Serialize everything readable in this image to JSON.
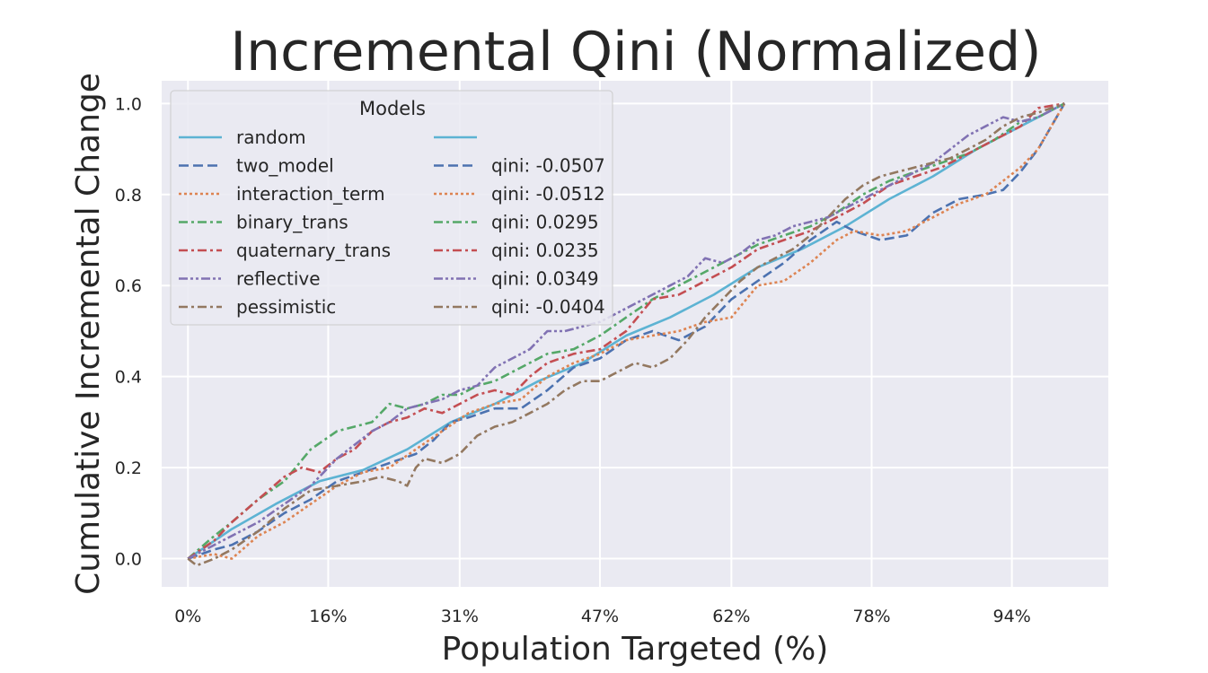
{
  "chart_data": {
    "type": "line",
    "title": "Incremental Qini (Normalized)",
    "xlabel": "Population Targeted (%)",
    "ylabel": "Cumulative Incremental Change",
    "xlim": [
      -3.0,
      105.0
    ],
    "ylim": [
      -0.062,
      1.05
    ],
    "x_ticks": [
      0,
      16,
      31,
      47,
      62,
      78,
      94
    ],
    "x_tick_labels": [
      "0%",
      "16%",
      "31%",
      "47%",
      "62%",
      "78%",
      "94%"
    ],
    "y_ticks": [
      0.0,
      0.2,
      0.4,
      0.6,
      0.8,
      1.0
    ],
    "y_tick_labels": [
      "0.0",
      "0.2",
      "0.4",
      "0.6",
      "0.8",
      "1.0"
    ],
    "grid": true,
    "legend": {
      "title": "Models",
      "placement": "top-left",
      "qini_labels": [
        "",
        "qini: -0.0507",
        "qini: -0.0512",
        "qini: 0.0295",
        "qini: 0.0235",
        "qini: 0.0349",
        "qini: -0.0404"
      ]
    },
    "series": [
      {
        "name": "random",
        "color": "#5DB3D3",
        "dash": "solid",
        "points": [
          [
            0,
            0
          ],
          [
            5,
            0.065
          ],
          [
            10,
            0.12
          ],
          [
            15,
            0.17
          ],
          [
            20,
            0.195
          ],
          [
            25,
            0.24
          ],
          [
            30,
            0.3
          ],
          [
            35,
            0.34
          ],
          [
            40,
            0.39
          ],
          [
            45,
            0.43
          ],
          [
            50,
            0.49
          ],
          [
            55,
            0.53
          ],
          [
            60,
            0.58
          ],
          [
            65,
            0.64
          ],
          [
            70,
            0.68
          ],
          [
            75,
            0.73
          ],
          [
            80,
            0.79
          ],
          [
            85,
            0.84
          ],
          [
            90,
            0.9
          ],
          [
            95,
            0.95
          ],
          [
            100,
            1.0
          ]
        ]
      },
      {
        "name": "two_model",
        "color": "#4C72B0",
        "dash": "dashed",
        "points": [
          [
            0,
            0
          ],
          [
            3,
            0.02
          ],
          [
            5,
            0.03
          ],
          [
            8,
            0.06
          ],
          [
            11,
            0.1
          ],
          [
            14,
            0.13
          ],
          [
            17,
            0.17
          ],
          [
            20,
            0.19
          ],
          [
            23,
            0.21
          ],
          [
            26,
            0.23
          ],
          [
            28,
            0.26
          ],
          [
            30,
            0.3
          ],
          [
            32,
            0.31
          ],
          [
            35,
            0.33
          ],
          [
            38,
            0.33
          ],
          [
            41,
            0.37
          ],
          [
            44,
            0.42
          ],
          [
            47,
            0.44
          ],
          [
            50,
            0.48
          ],
          [
            53,
            0.5
          ],
          [
            56,
            0.48
          ],
          [
            59,
            0.51
          ],
          [
            62,
            0.57
          ],
          [
            65,
            0.61
          ],
          [
            68,
            0.65
          ],
          [
            71,
            0.7
          ],
          [
            74,
            0.74
          ],
          [
            76,
            0.72
          ],
          [
            79,
            0.7
          ],
          [
            82,
            0.71
          ],
          [
            85,
            0.76
          ],
          [
            88,
            0.79
          ],
          [
            91,
            0.8
          ],
          [
            93,
            0.81
          ],
          [
            95,
            0.85
          ],
          [
            97,
            0.9
          ],
          [
            100,
            1.0
          ]
        ]
      },
      {
        "name": "interaction_term",
        "color": "#DD8452",
        "dash": "dotted",
        "points": [
          [
            0,
            0
          ],
          [
            3,
            0.01
          ],
          [
            5,
            0.0
          ],
          [
            8,
            0.05
          ],
          [
            11,
            0.08
          ],
          [
            14,
            0.12
          ],
          [
            17,
            0.16
          ],
          [
            20,
            0.19
          ],
          [
            23,
            0.2
          ],
          [
            26,
            0.24
          ],
          [
            29,
            0.28
          ],
          [
            32,
            0.32
          ],
          [
            35,
            0.34
          ],
          [
            38,
            0.35
          ],
          [
            41,
            0.4
          ],
          [
            44,
            0.43
          ],
          [
            47,
            0.45
          ],
          [
            50,
            0.48
          ],
          [
            53,
            0.49
          ],
          [
            56,
            0.5
          ],
          [
            59,
            0.52
          ],
          [
            62,
            0.53
          ],
          [
            65,
            0.6
          ],
          [
            68,
            0.61
          ],
          [
            71,
            0.65
          ],
          [
            74,
            0.7
          ],
          [
            76,
            0.72
          ],
          [
            79,
            0.71
          ],
          [
            82,
            0.72
          ],
          [
            85,
            0.75
          ],
          [
            88,
            0.78
          ],
          [
            91,
            0.8
          ],
          [
            93,
            0.83
          ],
          [
            95,
            0.86
          ],
          [
            97,
            0.9
          ],
          [
            100,
            1.0
          ]
        ]
      },
      {
        "name": "binary_trans",
        "color": "#55A868",
        "dash": "dashdot",
        "points": [
          [
            0,
            0
          ],
          [
            3,
            0.05
          ],
          [
            5,
            0.08
          ],
          [
            8,
            0.13
          ],
          [
            11,
            0.17
          ],
          [
            14,
            0.24
          ],
          [
            17,
            0.28
          ],
          [
            19,
            0.29
          ],
          [
            21,
            0.3
          ],
          [
            23,
            0.34
          ],
          [
            25,
            0.33
          ],
          [
            27,
            0.34
          ],
          [
            29,
            0.36
          ],
          [
            31,
            0.36
          ],
          [
            33,
            0.38
          ],
          [
            35,
            0.39
          ],
          [
            38,
            0.42
          ],
          [
            41,
            0.45
          ],
          [
            44,
            0.46
          ],
          [
            47,
            0.49
          ],
          [
            50,
            0.53
          ],
          [
            53,
            0.57
          ],
          [
            56,
            0.6
          ],
          [
            59,
            0.63
          ],
          [
            62,
            0.66
          ],
          [
            65,
            0.69
          ],
          [
            68,
            0.71
          ],
          [
            71,
            0.73
          ],
          [
            74,
            0.76
          ],
          [
            77,
            0.8
          ],
          [
            80,
            0.83
          ],
          [
            83,
            0.85
          ],
          [
            86,
            0.87
          ],
          [
            89,
            0.89
          ],
          [
            92,
            0.92
          ],
          [
            95,
            0.96
          ],
          [
            97,
            0.97
          ],
          [
            100,
            1.0
          ]
        ]
      },
      {
        "name": "quaternary_trans",
        "color": "#C44E52",
        "dash": "dashdot",
        "points": [
          [
            0,
            0
          ],
          [
            3,
            0.04
          ],
          [
            5,
            0.08
          ],
          [
            8,
            0.13
          ],
          [
            11,
            0.18
          ],
          [
            13,
            0.2
          ],
          [
            15,
            0.19
          ],
          [
            17,
            0.22
          ],
          [
            19,
            0.24
          ],
          [
            21,
            0.28
          ],
          [
            23,
            0.3
          ],
          [
            25,
            0.31
          ],
          [
            27,
            0.33
          ],
          [
            29,
            0.32
          ],
          [
            31,
            0.34
          ],
          [
            33,
            0.36
          ],
          [
            35,
            0.37
          ],
          [
            37,
            0.36
          ],
          [
            39,
            0.4
          ],
          [
            41,
            0.43
          ],
          [
            44,
            0.45
          ],
          [
            47,
            0.46
          ],
          [
            50,
            0.5
          ],
          [
            53,
            0.57
          ],
          [
            56,
            0.58
          ],
          [
            59,
            0.61
          ],
          [
            62,
            0.64
          ],
          [
            65,
            0.68
          ],
          [
            68,
            0.7
          ],
          [
            71,
            0.72
          ],
          [
            74,
            0.75
          ],
          [
            77,
            0.78
          ],
          [
            80,
            0.82
          ],
          [
            83,
            0.84
          ],
          [
            86,
            0.86
          ],
          [
            89,
            0.89
          ],
          [
            92,
            0.92
          ],
          [
            95,
            0.95
          ],
          [
            97,
            0.99
          ],
          [
            100,
            1.0
          ]
        ]
      },
      {
        "name": "reflective",
        "color": "#8172B3",
        "dash": "dashdotdot",
        "points": [
          [
            0,
            0
          ],
          [
            3,
            0.03
          ],
          [
            5,
            0.05
          ],
          [
            8,
            0.08
          ],
          [
            11,
            0.12
          ],
          [
            14,
            0.16
          ],
          [
            17,
            0.22
          ],
          [
            19,
            0.25
          ],
          [
            21,
            0.28
          ],
          [
            23,
            0.3
          ],
          [
            25,
            0.33
          ],
          [
            27,
            0.34
          ],
          [
            29,
            0.35
          ],
          [
            31,
            0.37
          ],
          [
            33,
            0.38
          ],
          [
            35,
            0.42
          ],
          [
            37,
            0.44
          ],
          [
            39,
            0.46
          ],
          [
            41,
            0.5
          ],
          [
            43,
            0.5
          ],
          [
            45,
            0.51
          ],
          [
            47,
            0.52
          ],
          [
            49,
            0.54
          ],
          [
            51,
            0.56
          ],
          [
            53,
            0.58
          ],
          [
            55,
            0.6
          ],
          [
            57,
            0.62
          ],
          [
            59,
            0.66
          ],
          [
            61,
            0.65
          ],
          [
            63,
            0.67
          ],
          [
            65,
            0.7
          ],
          [
            67,
            0.71
          ],
          [
            69,
            0.73
          ],
          [
            71,
            0.74
          ],
          [
            73,
            0.75
          ],
          [
            75,
            0.77
          ],
          [
            77,
            0.79
          ],
          [
            79,
            0.81
          ],
          [
            81,
            0.83
          ],
          [
            83,
            0.85
          ],
          [
            85,
            0.87
          ],
          [
            87,
            0.9
          ],
          [
            89,
            0.93
          ],
          [
            91,
            0.95
          ],
          [
            93,
            0.97
          ],
          [
            95,
            0.96
          ],
          [
            97,
            0.97
          ],
          [
            100,
            1.0
          ]
        ]
      },
      {
        "name": "pessimistic",
        "color": "#937860",
        "dash": "dashdot",
        "points": [
          [
            0,
            0
          ],
          [
            1,
            -0.015
          ],
          [
            3,
            0.0
          ],
          [
            5,
            0.02
          ],
          [
            8,
            0.06
          ],
          [
            11,
            0.11
          ],
          [
            14,
            0.15
          ],
          [
            17,
            0.16
          ],
          [
            20,
            0.17
          ],
          [
            22,
            0.18
          ],
          [
            24,
            0.17
          ],
          [
            25,
            0.16
          ],
          [
            26,
            0.2
          ],
          [
            27,
            0.22
          ],
          [
            29,
            0.21
          ],
          [
            31,
            0.23
          ],
          [
            33,
            0.27
          ],
          [
            35,
            0.29
          ],
          [
            37,
            0.3
          ],
          [
            39,
            0.32
          ],
          [
            41,
            0.34
          ],
          [
            43,
            0.37
          ],
          [
            45,
            0.39
          ],
          [
            47,
            0.39
          ],
          [
            49,
            0.41
          ],
          [
            51,
            0.43
          ],
          [
            53,
            0.42
          ],
          [
            55,
            0.44
          ],
          [
            57,
            0.48
          ],
          [
            59,
            0.53
          ],
          [
            61,
            0.57
          ],
          [
            63,
            0.61
          ],
          [
            65,
            0.64
          ],
          [
            67,
            0.66
          ],
          [
            69,
            0.68
          ],
          [
            71,
            0.71
          ],
          [
            73,
            0.75
          ],
          [
            75,
            0.79
          ],
          [
            77,
            0.82
          ],
          [
            79,
            0.84
          ],
          [
            81,
            0.85
          ],
          [
            83,
            0.86
          ],
          [
            85,
            0.87
          ],
          [
            87,
            0.88
          ],
          [
            89,
            0.9
          ],
          [
            91,
            0.92
          ],
          [
            93,
            0.95
          ],
          [
            95,
            0.97
          ],
          [
            97,
            0.98
          ],
          [
            100,
            1.0
          ]
        ]
      }
    ]
  }
}
